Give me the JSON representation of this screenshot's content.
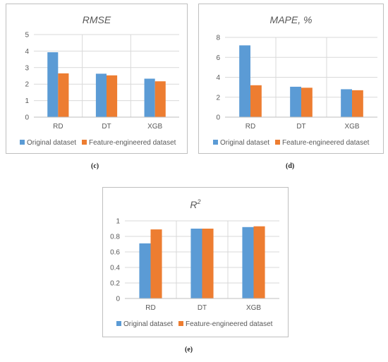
{
  "colors": {
    "original": "#5B9BD5",
    "engineered": "#ED7D31",
    "grid": "#d9d9d9",
    "axis": "#bfbfbf",
    "text": "#595959",
    "frame": "#bfbfbf"
  },
  "chart_data": [
    {
      "type": "bar",
      "title": "RMSE",
      "title_style": "italic",
      "caption": "(c)",
      "categories": [
        "RD",
        "DT",
        "XGB"
      ],
      "series": [
        {
          "name": "Original dataset",
          "values": [
            3.93,
            2.63,
            2.33
          ]
        },
        {
          "name": "Feature-engineered dataset",
          "values": [
            2.65,
            2.53,
            2.17
          ]
        }
      ],
      "ylim": [
        0,
        5
      ],
      "yticks": [
        0,
        1,
        2,
        3,
        4,
        5
      ],
      "ytick_labels": [
        "0",
        "1",
        "2",
        "3",
        "4",
        "5"
      ],
      "grid": true,
      "legend": "bottom"
    },
    {
      "type": "bar",
      "title": "MAPE, %",
      "title_style": "italic",
      "caption": "(d)",
      "categories": [
        "RD",
        "DT",
        "XGB"
      ],
      "series": [
        {
          "name": "Original dataset",
          "values": [
            7.2,
            3.05,
            2.8
          ]
        },
        {
          "name": "Feature-engineered dataset",
          "values": [
            3.2,
            2.95,
            2.7
          ]
        }
      ],
      "ylim": [
        0,
        8
      ],
      "yticks": [
        0,
        2,
        4,
        6,
        8
      ],
      "ytick_labels": [
        "0",
        "2",
        "4",
        "6",
        "8"
      ],
      "grid": true,
      "legend": "bottom"
    },
    {
      "type": "bar",
      "title": "R",
      "title_superscript": "2",
      "title_style": "italic",
      "caption": "(e)",
      "categories": [
        "RD",
        "DT",
        "XGB"
      ],
      "series": [
        {
          "name": "Original dataset",
          "values": [
            0.71,
            0.9,
            0.92
          ]
        },
        {
          "name": "Feature-engineered dataset",
          "values": [
            0.89,
            0.9,
            0.93
          ]
        }
      ],
      "ylim": [
        0,
        1
      ],
      "yticks": [
        0,
        0.2,
        0.4,
        0.6,
        0.8,
        1
      ],
      "ytick_labels": [
        "0",
        "0.2",
        "0.4",
        "0.6",
        "0.8",
        "1"
      ],
      "grid": true,
      "legend": "bottom"
    }
  ]
}
